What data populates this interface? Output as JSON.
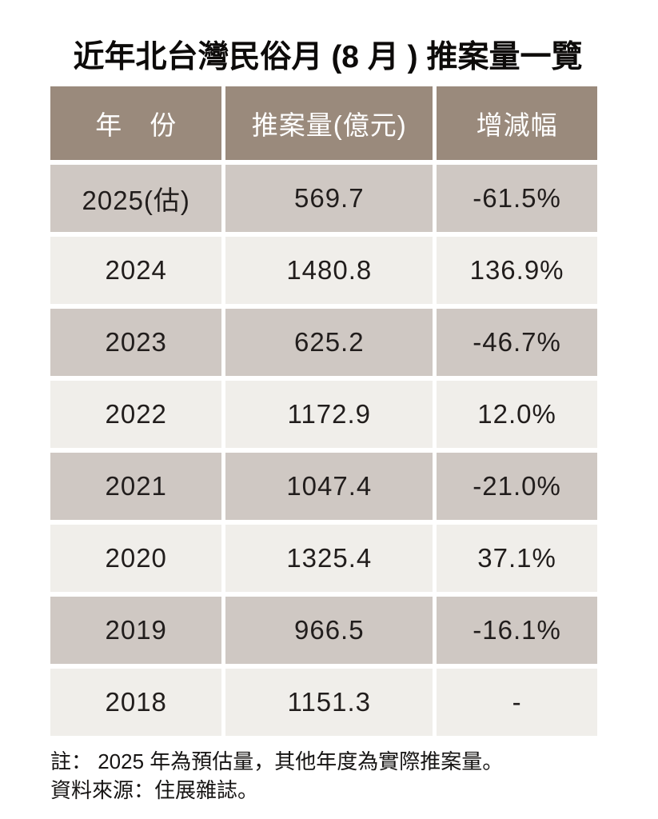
{
  "title": "近年北台灣民俗月 (8 月 ) 推案量一覽",
  "notes": {
    "note1": "註： 2025 年為預估量，其他年度為實際推案量。",
    "note2": "資料來源：住展雜誌。"
  },
  "colors": {
    "header_bg": "#9a8a7c",
    "header_text": "#ffffff",
    "row_dark_bg": "#cfc8c3",
    "row_light_bg": "#f0eeea",
    "cell_text": "#211d1c",
    "page_bg": "#ffffff"
  },
  "chart_data": {
    "type": "table",
    "title": "近年北台灣民俗月 (8 月 ) 推案量一覽",
    "columns": [
      "年　份",
      "推案量(億元)",
      "增減幅"
    ],
    "rows": [
      [
        "2025(估)",
        "569.7",
        "-61.5%"
      ],
      [
        "2024",
        "1480.8",
        "136.9%"
      ],
      [
        "2023",
        "625.2",
        "-46.7%"
      ],
      [
        "2022",
        "1172.9",
        "12.0%"
      ],
      [
        "2021",
        "1047.4",
        "-21.0%"
      ],
      [
        "2020",
        "1325.4",
        "37.1%"
      ],
      [
        "2019",
        "966.5",
        "-16.1%"
      ],
      [
        "2018",
        "1151.3",
        "-"
      ]
    ],
    "units": "推案量 in 億元 (hundred-million TWD)",
    "note": "2025 年為預估量，其他年度為實際推案量",
    "source": "住展雜誌"
  }
}
